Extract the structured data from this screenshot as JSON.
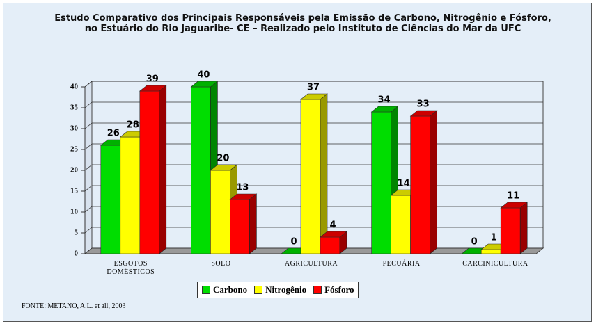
{
  "chart_data": {
    "type": "bar3d",
    "title": "Estudo Comparativo dos Principais Responsáveis pela Emissão de Carbono, Nitrogênio e Fósforo, no Estuário do Rio Jaguaribe- CE – Realizado pelo Instituto de Ciências do Mar da UFC",
    "categories": [
      "ESGOTOS DOMÉSTICOS",
      "SOLO",
      "AGRICULTURA",
      "PECUÁRIA",
      "CARCINICULTURA"
    ],
    "series": [
      {
        "name": "Carbono",
        "color": "#00dd00",
        "values": [
          26,
          40,
          0,
          34,
          0
        ]
      },
      {
        "name": "Nitrogênio",
        "color": "#ffff00",
        "values": [
          28,
          20,
          37,
          14,
          1
        ]
      },
      {
        "name": "Fósforo",
        "color": "#ff0000",
        "values": [
          39,
          13,
          4,
          33,
          11
        ]
      }
    ],
    "ylim": [
      0,
      40
    ],
    "yticks": [
      0,
      5,
      10,
      15,
      20,
      25,
      30,
      35,
      40
    ],
    "grid": true,
    "source": "FONTE: METANO, A.L. et all, 2003"
  }
}
